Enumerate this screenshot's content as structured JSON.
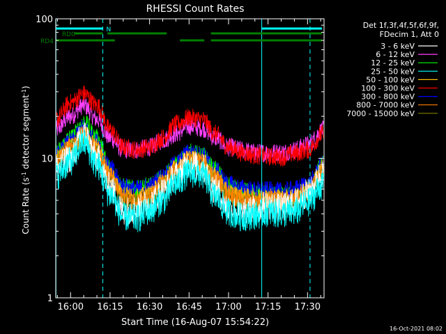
{
  "chart_data": {
    "type": "line",
    "title": "RHESSI Count Rates",
    "xlabel": "Start Time (16-Aug-07 15:54:22)",
    "ylabel_main": "Count Rate (s",
    "ylabel_sup": "-1",
    "ylabel_rest": " detector segment",
    "ylabel_sup2": "-1",
    "ylabel_end": ")",
    "y_scale": "log",
    "ylim": [
      1,
      100
    ],
    "y_ticks": [
      {
        "v": 1,
        "label": "1"
      },
      {
        "v": 10,
        "label": "10"
      },
      {
        "v": 100,
        "label": "100"
      }
    ],
    "xlim_minutes": [
      -5.63,
      96.27
    ],
    "x_ticks": [
      {
        "v": 0,
        "label": "16:00"
      },
      {
        "v": 15,
        "label": "16:15"
      },
      {
        "v": 30,
        "label": "16:30"
      },
      {
        "v": 45,
        "label": "16:45"
      },
      {
        "v": 60,
        "label": "17:00"
      },
      {
        "v": 75,
        "label": "17:15"
      },
      {
        "v": 90,
        "label": "17:30"
      }
    ],
    "legend_header": [
      "Det 1f,3f,4f,5f,6f,9f,",
      "FDecim 1, Att 0"
    ],
    "legend_placement": "right",
    "series": [
      {
        "name": "3 - 6 keV",
        "color": "#ffffff",
        "points": [
          [
            -5.6,
            8.5
          ],
          [
            0,
            10
          ],
          [
            5,
            15
          ],
          [
            10,
            10
          ],
          [
            15,
            6.2
          ],
          [
            20,
            4.2
          ],
          [
            25,
            4.3
          ],
          [
            30,
            4.8
          ],
          [
            35,
            5.8
          ],
          [
            40,
            7.5
          ],
          [
            45,
            9.2
          ],
          [
            50,
            8.5
          ],
          [
            55,
            6
          ],
          [
            60,
            4.4
          ],
          [
            65,
            4
          ],
          [
            70,
            4.3
          ],
          [
            75,
            4.6
          ],
          [
            80,
            4.4
          ],
          [
            85,
            4.8
          ],
          [
            90,
            5.6
          ],
          [
            96,
            7.8
          ]
        ]
      },
      {
        "name": "6 - 12 keV",
        "color": "#ff40ff",
        "points": [
          [
            -5.6,
            16
          ],
          [
            0,
            20
          ],
          [
            5,
            24
          ],
          [
            10,
            19
          ],
          [
            15,
            14
          ],
          [
            20,
            11.5
          ],
          [
            25,
            11.5
          ],
          [
            30,
            12
          ],
          [
            35,
            13.5
          ],
          [
            40,
            15
          ],
          [
            45,
            17
          ],
          [
            50,
            16.5
          ],
          [
            55,
            14
          ],
          [
            60,
            12
          ],
          [
            65,
            11.5
          ],
          [
            70,
            11
          ],
          [
            75,
            11
          ],
          [
            80,
            11
          ],
          [
            85,
            11.5
          ],
          [
            90,
            12.5
          ],
          [
            96,
            16
          ]
        ]
      },
      {
        "name": "12 - 25 keV",
        "color": "#00ff00",
        "points": [
          [
            -5.6,
            11
          ],
          [
            0,
            14
          ],
          [
            5,
            18
          ],
          [
            10,
            14
          ],
          [
            15,
            8.5
          ],
          [
            20,
            6.2
          ],
          [
            25,
            6
          ],
          [
            30,
            6.3
          ],
          [
            35,
            7.2
          ],
          [
            40,
            9
          ],
          [
            45,
            11
          ],
          [
            50,
            10.5
          ],
          [
            55,
            8.2
          ],
          [
            60,
            6.3
          ],
          [
            65,
            5.8
          ],
          [
            70,
            5.6
          ],
          [
            75,
            5.6
          ],
          [
            80,
            5.4
          ],
          [
            85,
            5.6
          ],
          [
            90,
            6.2
          ],
          [
            96,
            9
          ]
        ]
      },
      {
        "name": "25 - 50 keV",
        "color": "#00ffff",
        "points": [
          [
            -5.6,
            7.5
          ],
          [
            0,
            9.5
          ],
          [
            5,
            13
          ],
          [
            10,
            9
          ],
          [
            15,
            5.5
          ],
          [
            20,
            3.8
          ],
          [
            25,
            3.7
          ],
          [
            30,
            4.2
          ],
          [
            35,
            5
          ],
          [
            40,
            6.6
          ],
          [
            45,
            7.8
          ],
          [
            50,
            7.6
          ],
          [
            55,
            5.3
          ],
          [
            60,
            4.1
          ],
          [
            65,
            3.8
          ],
          [
            70,
            3.9
          ],
          [
            75,
            4.1
          ],
          [
            80,
            4
          ],
          [
            85,
            4.1
          ],
          [
            90,
            4.8
          ],
          [
            96,
            6.5
          ]
        ]
      },
      {
        "name": "50 - 100 keV",
        "color": "#ffc000",
        "points": [
          [
            -5.6,
            10
          ],
          [
            0,
            12
          ],
          [
            5,
            15
          ],
          [
            10,
            12
          ],
          [
            15,
            7.8
          ],
          [
            20,
            5.5
          ],
          [
            25,
            5.2
          ],
          [
            30,
            5.5
          ],
          [
            35,
            6.8
          ],
          [
            40,
            8.5
          ],
          [
            45,
            10
          ],
          [
            50,
            9.5
          ],
          [
            55,
            7.4
          ],
          [
            60,
            5.7
          ],
          [
            65,
            5.3
          ],
          [
            70,
            5.2
          ],
          [
            75,
            5.3
          ],
          [
            80,
            5.2
          ],
          [
            85,
            5.3
          ],
          [
            90,
            5.9
          ],
          [
            96,
            8.5
          ]
        ]
      },
      {
        "name": "100 - 300 keV",
        "color": "#ff0000",
        "points": [
          [
            -5.6,
            19
          ],
          [
            0,
            25
          ],
          [
            5,
            29
          ],
          [
            10,
            24
          ],
          [
            15,
            16
          ],
          [
            20,
            12
          ],
          [
            25,
            11.5
          ],
          [
            30,
            12
          ],
          [
            35,
            14
          ],
          [
            40,
            17.5
          ],
          [
            45,
            19.5
          ],
          [
            50,
            19
          ],
          [
            55,
            15
          ],
          [
            60,
            12
          ],
          [
            65,
            11
          ],
          [
            70,
            10.5
          ],
          [
            75,
            10.3
          ],
          [
            80,
            10.2
          ],
          [
            85,
            10.8
          ],
          [
            90,
            11.5
          ],
          [
            96,
            15
          ]
        ]
      },
      {
        "name": "300 - 800 keV",
        "color": "#0000ff",
        "points": [
          [
            -5.6,
            10.5
          ],
          [
            0,
            13
          ],
          [
            5,
            16.5
          ],
          [
            10,
            13
          ],
          [
            15,
            8.5
          ],
          [
            20,
            6.3
          ],
          [
            25,
            6
          ],
          [
            30,
            6.3
          ],
          [
            35,
            7.4
          ],
          [
            40,
            9.2
          ],
          [
            45,
            11
          ],
          [
            50,
            10.5
          ],
          [
            55,
            8.2
          ],
          [
            60,
            6.5
          ],
          [
            65,
            6.1
          ],
          [
            70,
            5.9
          ],
          [
            75,
            5.9
          ],
          [
            80,
            5.8
          ],
          [
            85,
            6
          ],
          [
            90,
            6.5
          ],
          [
            96,
            9
          ]
        ]
      },
      {
        "name": "800 - 7000 keV",
        "color": "#ff8000",
        "points": [
          [
            -5.6,
            9.8
          ],
          [
            0,
            12
          ],
          [
            5,
            14.5
          ],
          [
            10,
            11.5
          ],
          [
            15,
            7.5
          ],
          [
            20,
            5.3
          ],
          [
            25,
            5
          ],
          [
            30,
            5.3
          ],
          [
            35,
            6.6
          ],
          [
            40,
            8.3
          ],
          [
            45,
            9.8
          ],
          [
            50,
            9.3
          ],
          [
            55,
            7.2
          ],
          [
            60,
            5.5
          ],
          [
            65,
            5.1
          ],
          [
            70,
            5
          ],
          [
            75,
            5.1
          ],
          [
            80,
            5
          ],
          [
            85,
            5.1
          ],
          [
            90,
            5.7
          ],
          [
            96,
            8.2
          ]
        ]
      },
      {
        "name": "7000 - 15000 keV",
        "color": "#808000",
        "points": [
          [
            -5.6,
            9.2
          ],
          [
            0,
            11.5
          ],
          [
            5,
            14
          ],
          [
            10,
            11
          ],
          [
            15,
            7.2
          ],
          [
            20,
            5.1
          ],
          [
            25,
            4.8
          ],
          [
            30,
            5.1
          ],
          [
            35,
            6.3
          ],
          [
            40,
            8
          ],
          [
            45,
            9.4
          ],
          [
            50,
            9
          ],
          [
            55,
            6.9
          ],
          [
            60,
            5.3
          ],
          [
            65,
            4.9
          ],
          [
            70,
            4.8
          ],
          [
            75,
            4.9
          ],
          [
            80,
            4.8
          ],
          [
            85,
            4.9
          ],
          [
            90,
            5.5
          ],
          [
            96,
            7.8
          ]
        ]
      }
    ],
    "vertical_markers_minutes": [
      -5.55,
      12.25,
      72.6,
      90.95
    ],
    "status_bars": [
      {
        "label": "N",
        "color": "#00ffff",
        "spans": [
          [
            -5.55,
            12.25
          ],
          [
            72.6,
            95.5
          ]
        ]
      },
      {
        "label": "RD0",
        "color": "#008000",
        "spans": [
          [
            1.5,
            12.25
          ],
          [
            14,
            36.5
          ],
          [
            53.3,
            95.5
          ]
        ]
      },
      {
        "label": "RD4",
        "color": "#008000",
        "spans": [
          [
            -5.55,
            16.8
          ],
          [
            41.5,
            50.8
          ],
          [
            53.3,
            95.5
          ]
        ]
      }
    ]
  },
  "footer_timestamp": "16-Oct-2021 08:02"
}
